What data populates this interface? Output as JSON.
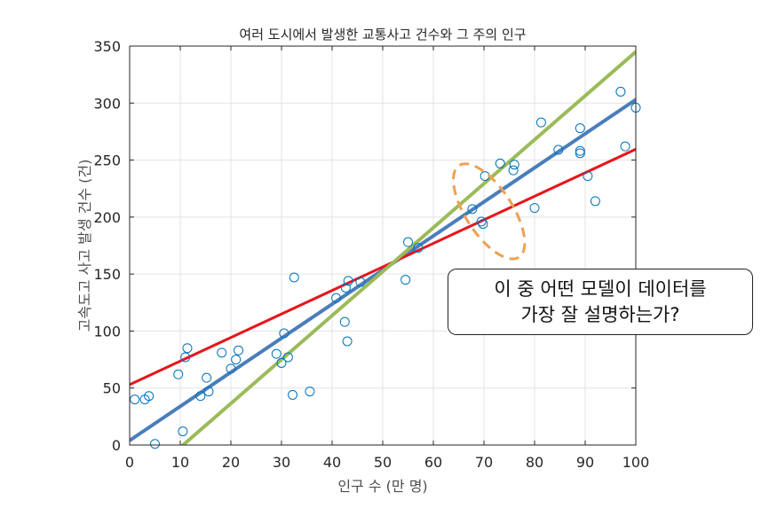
{
  "chart_data": {
    "type": "scatter",
    "title": "여러 도시에서 발생한 교통사고 건수와 그 주의 인구",
    "xlabel": "인구 수 (만 명)",
    "ylabel": "고속도고 사고 발생 건수 (건)",
    "xlim": [
      0,
      100
    ],
    "ylim": [
      0,
      350
    ],
    "xticks": [
      "0",
      "10",
      "20",
      "30",
      "40",
      "50",
      "60",
      "70",
      "80",
      "90",
      "100"
    ],
    "yticks": [
      "0",
      "50",
      "100",
      "150",
      "200",
      "250",
      "300",
      "350"
    ],
    "grid": true,
    "colors": {
      "points": "#0072BD",
      "blue_fit": "#4A7EBB",
      "red_fit": "#E8141B",
      "green_fit": "#9BBB59",
      "highlight": "#F0A050"
    },
    "points": [
      [
        1,
        40
      ],
      [
        3,
        40
      ],
      [
        3.8,
        43
      ],
      [
        5,
        1
      ],
      [
        9.6,
        62
      ],
      [
        10.5,
        12
      ],
      [
        11,
        77
      ],
      [
        11.4,
        85
      ],
      [
        14,
        43
      ],
      [
        15.2,
        59
      ],
      [
        15.6,
        47
      ],
      [
        18.2,
        81
      ],
      [
        20,
        67
      ],
      [
        21,
        75
      ],
      [
        21.5,
        83
      ],
      [
        29,
        80
      ],
      [
        30,
        72
      ],
      [
        30.5,
        98
      ],
      [
        31.3,
        77
      ],
      [
        32.2,
        44
      ],
      [
        32.5,
        147
      ],
      [
        35.6,
        47
      ],
      [
        40.8,
        129
      ],
      [
        42.5,
        108
      ],
      [
        42.7,
        138
      ],
      [
        43,
        91
      ],
      [
        43.2,
        144
      ],
      [
        45.6,
        143
      ],
      [
        54.5,
        145
      ],
      [
        55,
        178
      ],
      [
        57,
        173
      ],
      [
        67.7,
        207
      ],
      [
        69.5,
        196
      ],
      [
        69.8,
        194
      ],
      [
        70.2,
        236
      ],
      [
        73.2,
        247
      ],
      [
        75.8,
        241
      ],
      [
        76,
        246
      ],
      [
        80,
        208
      ],
      [
        81.3,
        283
      ],
      [
        84.7,
        259
      ],
      [
        89,
        278
      ],
      [
        89,
        258
      ],
      [
        89,
        256
      ],
      [
        90.5,
        236
      ],
      [
        92,
        214
      ],
      [
        97,
        310
      ],
      [
        97.9,
        262
      ],
      [
        100,
        296
      ]
    ],
    "fits": [
      {
        "color": "blue",
        "x": [
          0,
          106
        ],
        "y": [
          4,
          321
        ]
      },
      {
        "color": "red",
        "x": [
          0,
          107
        ],
        "y": [
          53,
          274
        ]
      },
      {
        "color": "green",
        "x": [
          9,
          100
        ],
        "y": [
          -6,
          345
        ]
      }
    ],
    "highlight_ellipse": {
      "center": [
        71,
        205
      ],
      "x_radius": 4.6,
      "y_radius": 48,
      "rotation": -33,
      "style": "dashed"
    }
  },
  "callout": {
    "line1": "이 중 어떤 모델이 데이터를",
    "line2": "가장 잘 설명하는가?"
  }
}
